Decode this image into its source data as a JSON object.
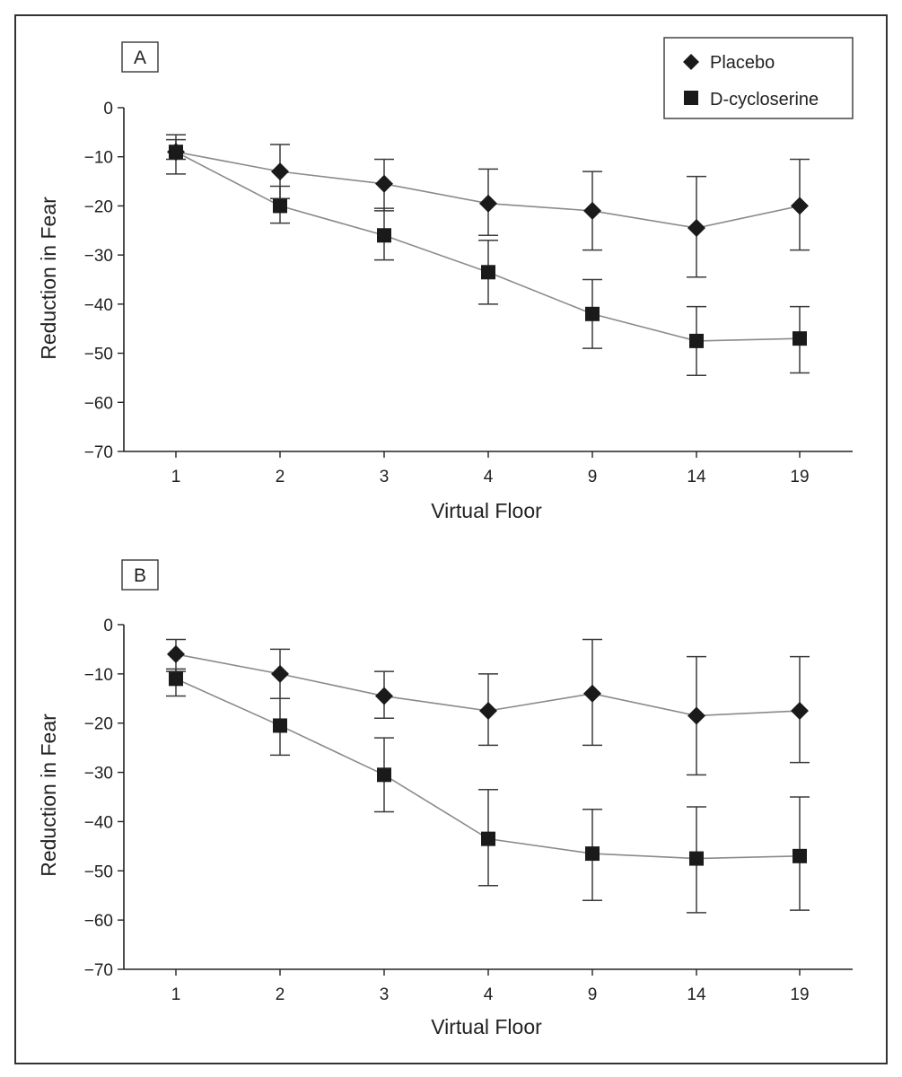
{
  "chart_data": [
    {
      "type": "line",
      "panel_label": "A",
      "title": "",
      "xlabel": "Virtual Floor",
      "ylabel": "Reduction in Fear",
      "categories": [
        "1",
        "2",
        "3",
        "4",
        "9",
        "14",
        "19"
      ],
      "ylim": [
        -70,
        0
      ],
      "yticks": [
        "0",
        "−10",
        "−20",
        "−30",
        "−40",
        "−50",
        "−60",
        "−70"
      ],
      "grid": false,
      "legend": {
        "position": "top-right",
        "entries": [
          "Placebo",
          "D-cycloserine"
        ]
      },
      "series": [
        {
          "name": "Placebo",
          "marker": "diamond",
          "values": [
            -9,
            -13,
            -15.5,
            -19.5,
            -21,
            -24.5,
            -20
          ],
          "error_low": [
            -13.5,
            -18.5,
            -21,
            -26,
            -29,
            -34.5,
            -29
          ],
          "error_high": [
            -5.5,
            -7.5,
            -10.5,
            -12.5,
            -13,
            -14,
            -10.5
          ]
        },
        {
          "name": "D-cycloserine",
          "marker": "square",
          "values": [
            -9,
            -20,
            -26,
            -33.5,
            -42,
            -47.5,
            -47
          ],
          "error_low": [
            -10.5,
            -23.5,
            -31,
            -40,
            -49,
            -54.5,
            -54
          ],
          "error_high": [
            -6.5,
            -16,
            -20.5,
            -27,
            -35,
            -40.5,
            -40.5
          ]
        }
      ]
    },
    {
      "type": "line",
      "panel_label": "B",
      "title": "",
      "xlabel": "Virtual Floor",
      "ylabel": "Reduction in Fear",
      "categories": [
        "1",
        "2",
        "3",
        "4",
        "9",
        "14",
        "19"
      ],
      "ylim": [
        -70,
        0
      ],
      "yticks": [
        "0",
        "−10",
        "−20",
        "−30",
        "−40",
        "−50",
        "−60",
        "−70"
      ],
      "grid": false,
      "series": [
        {
          "name": "Placebo",
          "marker": "diamond",
          "values": [
            -6,
            -10,
            -14.5,
            -17.5,
            -14,
            -18.5,
            -17.5
          ],
          "error_low": [
            -9.5,
            -15,
            -19,
            -24.5,
            -24.5,
            -30.5,
            -28
          ],
          "error_high": [
            -3,
            -5,
            -9.5,
            -10,
            -3,
            -6.5,
            -6.5
          ]
        },
        {
          "name": "D-cycloserine",
          "marker": "square",
          "values": [
            -11,
            -20.5,
            -30.5,
            -43.5,
            -46.5,
            -47.5,
            -47
          ],
          "error_low": [
            -14.5,
            -26.5,
            -38,
            -53,
            -56,
            -58.5,
            -58
          ],
          "error_high": [
            -9,
            -15,
            -23,
            -33.5,
            -37.5,
            -37,
            -35
          ]
        }
      ]
    }
  ],
  "colors": {
    "line": "#8a8a8a",
    "marker": "#1a1a1a",
    "axis": "#222222",
    "frame": "#333333"
  }
}
